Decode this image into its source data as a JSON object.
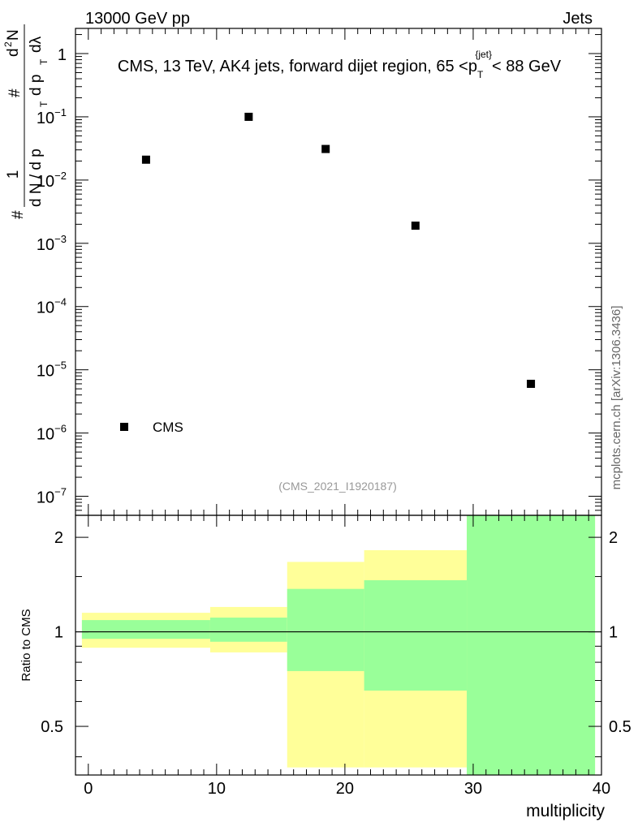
{
  "header": {
    "energy_label": "13000 GeV pp",
    "category_label": "Jets"
  },
  "side_label": "mcplots.cern.ch [arXiv:1306.3436]",
  "chart_data": {
    "type": "scatter",
    "title_main": "CMS, 13 TeV, AK4 jets, forward dijet region, 65 <p",
    "title_sub": "T",
    "title_sup": "{jet}",
    "title_end": "< 88 GeV",
    "analysis_id": "(CMS_2021_I1920187)",
    "ylabel_main_parts": [
      "#",
      "1",
      "d N / d p",
      "T",
      "#",
      "d p",
      "T",
      "d",
      "2",
      "N",
      "dλ"
    ],
    "xlabel": "multiplicity",
    "ylabel_ratio": "Ratio to CMS",
    "legend": {
      "entries": [
        "CMS"
      ],
      "position": "bottom-left"
    },
    "x_range": [
      -1,
      40
    ],
    "main_ylim": [
      5e-08,
      2.5
    ],
    "main_yticks": [
      {
        "value": 1,
        "base": "1",
        "exp": ""
      },
      {
        "value": 0.1,
        "base": "10",
        "exp": "−1"
      },
      {
        "value": 0.01,
        "base": "10",
        "exp": "−2"
      },
      {
        "value": 0.001,
        "base": "10",
        "exp": "−3"
      },
      {
        "value": 0.0001,
        "base": "10",
        "exp": "−4"
      },
      {
        "value": 1e-05,
        "base": "10",
        "exp": "−5"
      },
      {
        "value": 1e-06,
        "base": "10",
        "exp": "−6"
      },
      {
        "value": 1e-07,
        "base": "10",
        "exp": "−7"
      }
    ],
    "xticks": [
      {
        "value": 0,
        "label": "0"
      },
      {
        "value": 10,
        "label": "10"
      },
      {
        "value": 20,
        "label": "20"
      },
      {
        "value": 30,
        "label": "30"
      },
      {
        "value": 40,
        "label": "40"
      }
    ],
    "ratio_ylim": [
      0.35,
      2.35
    ],
    "ratio_yticks": [
      {
        "value": 0.5,
        "label": "0.5"
      },
      {
        "value": 1,
        "label": "1"
      },
      {
        "value": 2,
        "label": "2"
      }
    ],
    "series": [
      {
        "name": "CMS",
        "points": [
          {
            "x": 4.5,
            "y": 0.021
          },
          {
            "x": 12.5,
            "y": 0.1
          },
          {
            "x": 18.5,
            "y": 0.031
          },
          {
            "x": 25.5,
            "y": 0.0019
          },
          {
            "x": 34.5,
            "y": 6e-06
          }
        ]
      }
    ],
    "ratio_bands": [
      {
        "x0": -0.5,
        "x1": 9.5,
        "yellow": [
          0.89,
          1.15
        ],
        "green": [
          0.95,
          1.09
        ]
      },
      {
        "x0": 9.5,
        "x1": 15.5,
        "yellow": [
          0.86,
          1.2
        ],
        "green": [
          0.93,
          1.11
        ]
      },
      {
        "x0": 15.5,
        "x1": 21.5,
        "yellow": [
          0.37,
          1.67
        ],
        "green": [
          0.75,
          1.37
        ]
      },
      {
        "x0": 21.5,
        "x1": 29.5,
        "yellow": [
          0.37,
          1.82
        ],
        "green": [
          0.65,
          1.46
        ]
      },
      {
        "x0": 29.5,
        "x1": 39.5,
        "yellow": [
          0.35,
          2.35
        ],
        "green": [
          0.35,
          2.35
        ]
      }
    ],
    "colors": {
      "yellow_band": "#ffff99",
      "green_band": "#99ff99",
      "marker": "#000000"
    }
  }
}
